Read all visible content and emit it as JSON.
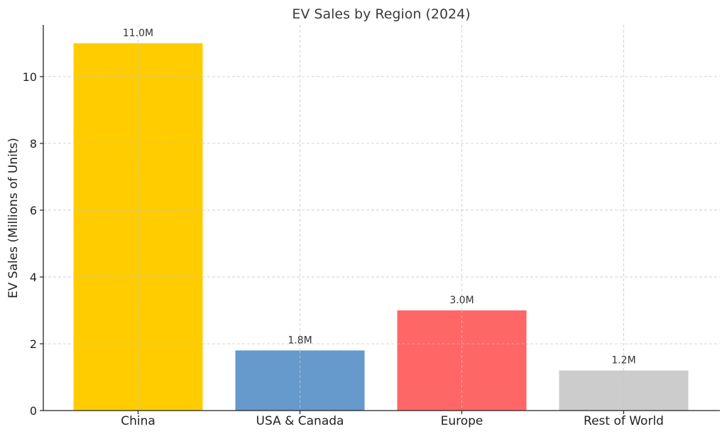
{
  "chart_data": {
    "type": "bar",
    "title": "EV Sales by Region (2024)",
    "xlabel": "",
    "ylabel": "EV Sales (Millions of Units)",
    "categories": [
      "China",
      "USA & Canada",
      "Europe",
      "Rest of World"
    ],
    "values": [
      11.0,
      1.8,
      3.0,
      1.2
    ],
    "data_labels": [
      "11.0M",
      "1.8M",
      "3.0M",
      "1.2M"
    ],
    "colors": [
      "#ffcc00",
      "#6699cc",
      "#ff6666",
      "#cccccc"
    ],
    "ylim": [
      0,
      11.55
    ],
    "yticks": [
      0,
      2,
      4,
      6,
      8,
      10
    ],
    "grid": true,
    "grid_style": "dashed",
    "legend": "none"
  }
}
